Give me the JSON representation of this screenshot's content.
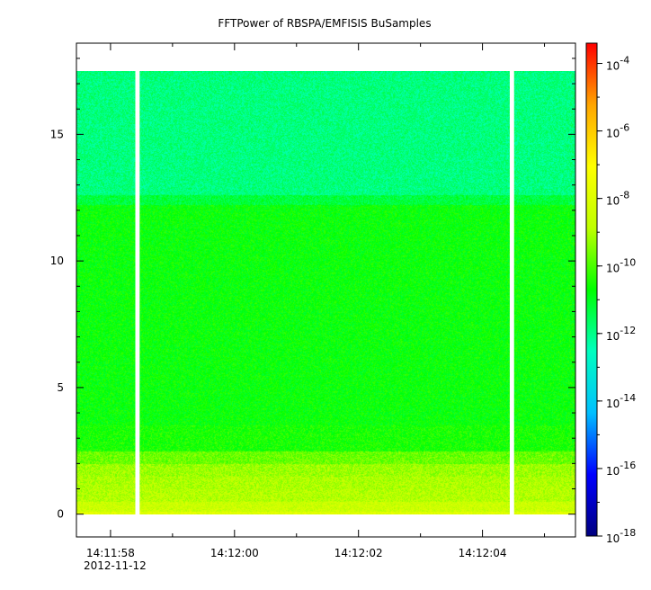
{
  "chart_data": {
    "type": "heatmap",
    "title": "FFTPower of RBSPA/EMFISIS  BuSamples",
    "xlabel": "",
    "ylabel": "",
    "x_tick_labels": [
      "14:11:58",
      "14:12:00",
      "14:12:02",
      "14:12:04"
    ],
    "x_tick_seconds": [
      58,
      60,
      62,
      64
    ],
    "x_date_label": "2012-11-12",
    "xlim_seconds": [
      57.45,
      65.5
    ],
    "y_ticks": [
      0,
      5,
      10,
      15
    ],
    "ylim": [
      -0.9,
      18.6
    ],
    "data_extent_y": [
      0,
      17.5
    ],
    "gaps_seconds": [
      {
        "start": 58.4,
        "end": 58.47
      },
      {
        "start": 64.44,
        "end": 64.51
      }
    ],
    "frequency_bands": [
      {
        "y_from": 0.0,
        "y_to": 0.1,
        "log10_power": -7.9
      },
      {
        "y_from": 0.1,
        "y_to": 0.5,
        "log10_power": -8.5
      },
      {
        "y_from": 0.5,
        "y_to": 1.0,
        "log10_power": -8.9
      },
      {
        "y_from": 1.0,
        "y_to": 1.5,
        "log10_power": -9.0
      },
      {
        "y_from": 1.5,
        "y_to": 2.0,
        "log10_power": -9.2
      },
      {
        "y_from": 2.0,
        "y_to": 2.5,
        "log10_power": -9.7
      },
      {
        "y_from": 2.5,
        "y_to": 3.5,
        "log10_power": -10.5
      },
      {
        "y_from": 3.5,
        "y_to": 12.2,
        "log10_power": -10.7
      },
      {
        "y_from": 12.2,
        "y_to": 12.6,
        "log10_power": -11.3
      },
      {
        "y_from": 12.6,
        "y_to": 17.5,
        "log10_power": -11.9
      }
    ],
    "colorbar": {
      "scale": "log",
      "range_log10": [
        -18,
        -3.4
      ],
      "tick_labels": [
        {
          "base": "10",
          "exp": "-4",
          "log10": -4
        },
        {
          "base": "10",
          "exp": "-6",
          "log10": -6
        },
        {
          "base": "10",
          "exp": "-8",
          "log10": -8
        },
        {
          "base": "10",
          "exp": "-10",
          "log10": -10
        },
        {
          "base": "10",
          "exp": "-12",
          "log10": -12
        },
        {
          "base": "10",
          "exp": "-14",
          "log10": -14
        },
        {
          "base": "10",
          "exp": "-16",
          "log10": -16
        },
        {
          "base": "10",
          "exp": "-18",
          "log10": -18
        }
      ],
      "colors": [
        "#00007f",
        "#0000ff",
        "#00bfff",
        "#00ffbf",
        "#00ff00",
        "#bfff00",
        "#ffff00",
        "#ffa500",
        "#ff0000"
      ]
    }
  }
}
